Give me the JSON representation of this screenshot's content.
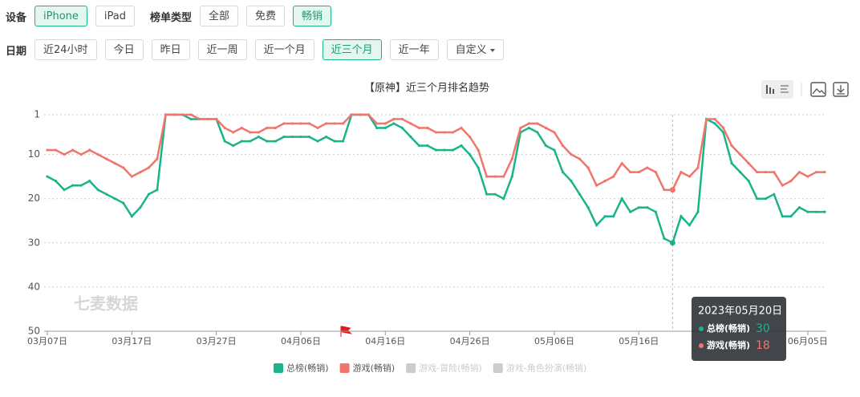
{
  "filters": [
    [
      {
        "label": "设备",
        "options": [
          "iPhone",
          "iPad"
        ],
        "active": 0
      },
      {
        "label": "榜单类型",
        "options": [
          "全部",
          "免费",
          "畅销"
        ],
        "active": 2
      }
    ],
    [
      {
        "label": "日期",
        "options": [
          "近24小时",
          "今日",
          "昨日",
          "近一周",
          "近一个月",
          "近三个月",
          "近一年",
          "自定义"
        ],
        "active": 5
      }
    ]
  ],
  "chart_data": {
    "type": "line",
    "title": "【原神】近三个月排名趋势",
    "watermark": "七麦数据",
    "categories": [
      "03月07日",
      null,
      null,
      null,
      null,
      null,
      null,
      null,
      null,
      null,
      "03月17日",
      null,
      null,
      null,
      null,
      null,
      null,
      null,
      null,
      null,
      "03月27日",
      null,
      null,
      null,
      null,
      null,
      null,
      null,
      null,
      null,
      "04月06日",
      null,
      null,
      null,
      null,
      null,
      null,
      null,
      null,
      null,
      "04月16日",
      null,
      null,
      null,
      null,
      null,
      null,
      null,
      null,
      null,
      "04月26日",
      null,
      null,
      null,
      null,
      null,
      null,
      null,
      null,
      null,
      "05月06日",
      null,
      null,
      null,
      null,
      null,
      null,
      null,
      null,
      null,
      "05月16日",
      null,
      null,
      null,
      null,
      null,
      null,
      null,
      null,
      null,
      null,
      null,
      null,
      null,
      null,
      null,
      null,
      null,
      null,
      null,
      "06月05日",
      null,
      null
    ],
    "series": [
      {
        "name": "总榜(畅销)",
        "color": "#1bb48a",
        "values": [
          15,
          16,
          18,
          17,
          17,
          16,
          18,
          19,
          20,
          21,
          24,
          22,
          19,
          18,
          1,
          1,
          1,
          2,
          2,
          2,
          2,
          7,
          8,
          7,
          7,
          6,
          7,
          7,
          6,
          6,
          6,
          6,
          7,
          6,
          7,
          7,
          1,
          1,
          1,
          4,
          4,
          3,
          4,
          6,
          8,
          8,
          9,
          9,
          9,
          8,
          10,
          13,
          19,
          19,
          20,
          15,
          5,
          4,
          5,
          8,
          9,
          14,
          16,
          19,
          22,
          26,
          24,
          24,
          20,
          23,
          22,
          22,
          23,
          29,
          30,
          24,
          26,
          23,
          2,
          3,
          5,
          12,
          14,
          16,
          20,
          20,
          19,
          24,
          24,
          22,
          23,
          23,
          23
        ]
      },
      {
        "name": "游戏(畅销)",
        "color": "#f0756a",
        "values": [
          9,
          9,
          10,
          9,
          10,
          9,
          10,
          11,
          12,
          13,
          15,
          14,
          13,
          11,
          1,
          1,
          1,
          1,
          2,
          2,
          2,
          4,
          5,
          4,
          5,
          5,
          4,
          4,
          3,
          3,
          3,
          3,
          4,
          3,
          3,
          3,
          1,
          1,
          1,
          3,
          3,
          2,
          2,
          3,
          4,
          4,
          5,
          5,
          5,
          4,
          6,
          9,
          15,
          15,
          15,
          11,
          4,
          3,
          3,
          4,
          5,
          8,
          10,
          11,
          13,
          17,
          16,
          15,
          12,
          14,
          14,
          13,
          14,
          18,
          18,
          14,
          15,
          13,
          2,
          2,
          4,
          8,
          10,
          12,
          14,
          14,
          14,
          17,
          16,
          14,
          15,
          14,
          14
        ]
      }
    ],
    "inactive_legend": [
      "游戏-冒险(畅销)",
      "游戏-角色扮演(畅销)"
    ],
    "inactive_color": "#cccccc",
    "ylim": [
      1,
      50
    ],
    "y_inverted": true,
    "yticks": [
      1,
      10,
      20,
      30,
      40,
      50
    ],
    "grid": true,
    "legend": "bottom",
    "tooltip": {
      "title": "2023年05月20日",
      "index": 74
    }
  }
}
